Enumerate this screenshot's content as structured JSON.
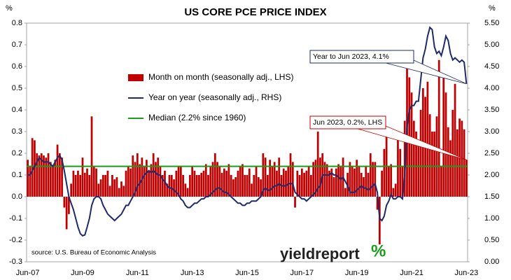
{
  "chart_data": {
    "type": "combo",
    "title": "US CORE PCE PRICE INDEX",
    "y_unit": "%",
    "y2_unit": "%",
    "source": "source: U.S. Bureau of Economic Analysis",
    "logo": "yieldreport",
    "logo_symbol": "%",
    "categories": [
      "Jun-07",
      null,
      null,
      null,
      null,
      null,
      null,
      null,
      null,
      null,
      null,
      null,
      null,
      null,
      null,
      null,
      null,
      null,
      null,
      null,
      null,
      null,
      null,
      null,
      "Jun-09",
      null,
      null,
      null,
      null,
      null,
      null,
      null,
      null,
      null,
      null,
      null,
      null,
      null,
      null,
      null,
      null,
      null,
      null,
      null,
      null,
      null,
      null,
      null,
      "Jun-11",
      null,
      null,
      null,
      null,
      null,
      null,
      null,
      null,
      null,
      null,
      null,
      null,
      null,
      null,
      null,
      null,
      null,
      null,
      null,
      null,
      null,
      null,
      null,
      "Jun-13",
      null,
      null,
      null,
      null,
      null,
      null,
      null,
      null,
      null,
      null,
      null,
      null,
      null,
      null,
      null,
      null,
      null,
      null,
      null,
      null,
      null,
      null,
      null,
      "Jun-15",
      null,
      null,
      null,
      null,
      null,
      null,
      null,
      null,
      null,
      null,
      null,
      null,
      null,
      null,
      null,
      null,
      null,
      null,
      null,
      null,
      null,
      null,
      null,
      "Jun-17",
      null,
      null,
      null,
      null,
      null,
      null,
      null,
      null,
      null,
      null,
      null,
      null,
      null,
      null,
      null,
      null,
      null,
      null,
      null,
      null,
      null,
      null,
      null,
      "Jun-19",
      null,
      null,
      null,
      null,
      null,
      null,
      null,
      null,
      null,
      null,
      null,
      null,
      null,
      null,
      null,
      null,
      null,
      null,
      null,
      null,
      null,
      null,
      null,
      "Jun-21",
      null,
      null,
      null,
      null,
      null,
      null,
      null,
      null,
      null,
      null,
      null,
      null,
      null,
      null,
      null,
      null,
      null,
      null,
      null,
      null,
      null,
      null,
      null,
      "Jun-23"
    ],
    "series": [
      {
        "name": "Month on month (seasonally adj., LHS)",
        "type": "bar",
        "color": "#c00000",
        "values": [
          0.17,
          0.14,
          0.27,
          0.26,
          0.2,
          0.19,
          0.2,
          0.19,
          0.18,
          0.2,
          0.16,
          0.14,
          0.17,
          0.24,
          0.2,
          0.18,
          -0.05,
          -0.15,
          -0.08,
          0.06,
          0.12,
          0.1,
          0.12,
          0.1,
          0.18,
          0.11,
          0.13,
          0.1,
          0.37,
          0.14,
          0.13,
          0.06,
          0.08,
          0.1,
          0.1,
          0.12,
          0.05,
          0.1,
          0.08,
          0.09,
          0.04,
          0.07,
          0.05,
          0.12,
          0.14,
          0.13,
          0.19,
          0.16,
          0.2,
          0.15,
          0.18,
          0.14,
          0.17,
          0.12,
          0.15,
          0.2,
          0.16,
          0.18,
          0.14,
          0.1,
          0.12,
          0.06,
          0.1,
          0.1,
          0.08,
          0.12,
          0.14,
          0.14,
          0.1,
          0.06,
          0.04,
          0.1,
          0.14,
          0.12,
          0.1,
          0.1,
          0.11,
          0.12,
          0.15,
          0.1,
          0.14,
          0.16,
          0.2,
          0.16,
          0.14,
          0.11,
          0.13,
          0.12,
          0.15,
          0.1,
          0.08,
          0.09,
          0.12,
          0.14,
          0.15,
          0.1,
          0.1,
          0.13,
          0.06,
          0.1,
          0.14,
          0.09,
          0.08,
          0.2,
          0.18,
          0.1,
          0.17,
          0.14,
          0.16,
          0.12,
          0.18,
          0.1,
          0.13,
          0.12,
          0.14,
          0.2,
          0.16,
          -0.05,
          0.12,
          0.1,
          0.13,
          0.11,
          0.12,
          0.14,
          0.1,
          0.16,
          0.17,
          0.3,
          0.18,
          0.2,
          0.16,
          0.15,
          0.12,
          0.13,
          0.09,
          0.13,
          0.15,
          0.14,
          0.18,
          0.04,
          0.11,
          0.16,
          0.14,
          0.13,
          0.17,
          0.14,
          0.11,
          0.09,
          0.14,
          0.11,
          0.2,
          0.16,
          0.16,
          -0.06,
          -0.22,
          0.12,
          0.22,
          0.3,
          0.14,
          0.15,
          0.04,
          0.06,
          0.26,
          0.22,
          0.14,
          0.35,
          0.59,
          0.55,
          0.48,
          0.35,
          0.3,
          0.24,
          0.4,
          0.5,
          0.46,
          0.53,
          0.38,
          0.3,
          0.3,
          0.37,
          0.63,
          0.14,
          0.56,
          0.48,
          0.32,
          0.26,
          0.4,
          0.52,
          0.31,
          0.36,
          0.35,
          0.31,
          0.17
        ]
      },
      {
        "name": "Year on year (seasonally adj., RHS)",
        "type": "line",
        "axis": "y2",
        "color": "#1f2a6b",
        "values": [
          2.0,
          2.0,
          2.1,
          2.2,
          2.3,
          2.4,
          2.35,
          2.3,
          2.3,
          2.3,
          2.25,
          2.2,
          2.3,
          2.4,
          2.45,
          2.35,
          2.1,
          1.8,
          1.5,
          1.35,
          1.2,
          1.0,
          0.8,
          0.65,
          0.6,
          0.62,
          0.8,
          1.0,
          1.3,
          1.45,
          1.5,
          1.5,
          1.45,
          1.3,
          1.2,
          1.1,
          1.05,
          1.0,
          0.95,
          1.0,
          1.05,
          1.1,
          1.2,
          1.3,
          1.3,
          1.4,
          1.5,
          1.6,
          1.75,
          1.8,
          1.9,
          2.0,
          2.05,
          2.1,
          2.05,
          2.1,
          2.05,
          2.0,
          2.0,
          1.9,
          1.85,
          1.75,
          1.7,
          1.7,
          1.65,
          1.6,
          1.55,
          1.45,
          1.4,
          1.3,
          1.25,
          1.25,
          1.3,
          1.35,
          1.35,
          1.4,
          1.45,
          1.45,
          1.5,
          1.5,
          1.55,
          1.6,
          1.65,
          1.7,
          1.7,
          1.65,
          1.6,
          1.6,
          1.55,
          1.5,
          1.45,
          1.4,
          1.35,
          1.35,
          1.3,
          1.3,
          1.35,
          1.35,
          1.4,
          1.4,
          1.4,
          1.45,
          1.5,
          1.65,
          1.7,
          1.65,
          1.65,
          1.7,
          1.75,
          1.75,
          1.8,
          1.75,
          1.75,
          1.75,
          1.8,
          1.8,
          1.8,
          1.6,
          1.55,
          1.5,
          1.45,
          1.45,
          1.4,
          1.45,
          1.5,
          1.55,
          1.6,
          1.7,
          1.75,
          2.0,
          2.0,
          2.0,
          2.0,
          2.05,
          2.0,
          2.0,
          1.95,
          1.9,
          1.95,
          1.85,
          1.75,
          1.6,
          1.6,
          1.6,
          1.65,
          1.7,
          1.75,
          1.7,
          1.7,
          1.65,
          1.7,
          1.75,
          1.8,
          1.6,
          1.0,
          0.95,
          1.05,
          1.3,
          1.4,
          1.55,
          1.45,
          1.45,
          1.5,
          1.5,
          1.45,
          2.0,
          3.1,
          3.5,
          3.6,
          3.6,
          3.7,
          3.7,
          4.2,
          4.7,
          4.9,
          5.2,
          5.4,
          5.35,
          4.95,
          4.8,
          4.85,
          4.75,
          4.95,
          5.2,
          5.1,
          4.8,
          4.65,
          4.7,
          4.65,
          4.6,
          4.65,
          4.6,
          4.1
        ]
      }
    ],
    "reference_lines": [
      {
        "name": "Median (2.2% since 1960)",
        "value": 2.2,
        "axis": "y2",
        "color": "#1a9e1a"
      }
    ],
    "annotations": [
      {
        "text": "Year to Jun 2023, 4.1%",
        "color": "#1f2a6b"
      },
      {
        "text": "Jun 2023, 0.2%, LHS",
        "color": "#c00000"
      }
    ],
    "ylim": [
      -0.3,
      0.8
    ],
    "yticks": [
      -0.3,
      -0.2,
      -0.1,
      {
        "value": 0,
        "label": "0.0"
      },
      0.1,
      0.2,
      0.3,
      0.4,
      0.5,
      0.6,
      0.7,
      0.8
    ],
    "y2lim": [
      0,
      5.5
    ],
    "y2ticks": [
      {
        "value": 0,
        "label": "0.00"
      },
      {
        "value": 0.5,
        "label": "0.50"
      },
      {
        "value": 1,
        "label": "1.00"
      },
      {
        "value": 1.5,
        "label": "1.50"
      },
      {
        "value": 2,
        "label": "2.00"
      },
      {
        "value": 2.5,
        "label": "2.50"
      },
      {
        "value": 3,
        "label": "3.00"
      },
      {
        "value": 3.5,
        "label": "3.50"
      },
      {
        "value": 4,
        "label": "4.00"
      },
      {
        "value": 4.5,
        "label": "4.50"
      },
      {
        "value": 5,
        "label": "5.00"
      },
      {
        "value": 5.5,
        "label": "5.50"
      }
    ],
    "grid": false
  }
}
